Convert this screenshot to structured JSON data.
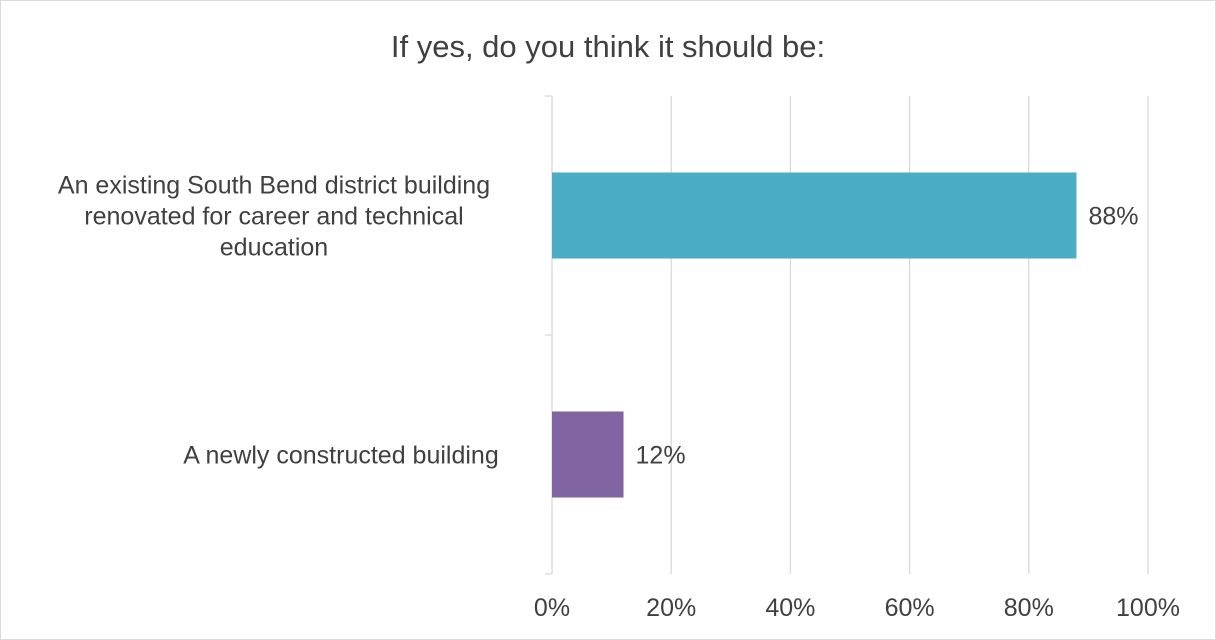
{
  "chart_data": {
    "type": "bar",
    "orientation": "horizontal",
    "title": "If yes, do you think it should be:",
    "categories": [
      [
        "An existing South Bend district building",
        "renovated for career and technical",
        "education"
      ],
      [
        "A newly constructed building"
      ]
    ],
    "values": [
      88,
      12
    ],
    "value_labels": [
      "88%",
      "12%"
    ],
    "bar_colors": [
      "#4BACC6",
      "#8064A2"
    ],
    "xlim": [
      0,
      100
    ],
    "x_ticks": [
      0,
      20,
      40,
      60,
      80,
      100
    ],
    "x_tick_labels": [
      "0%",
      "20%",
      "40%",
      "60%",
      "80%",
      "100%"
    ],
    "grid": true,
    "legend": "none"
  }
}
